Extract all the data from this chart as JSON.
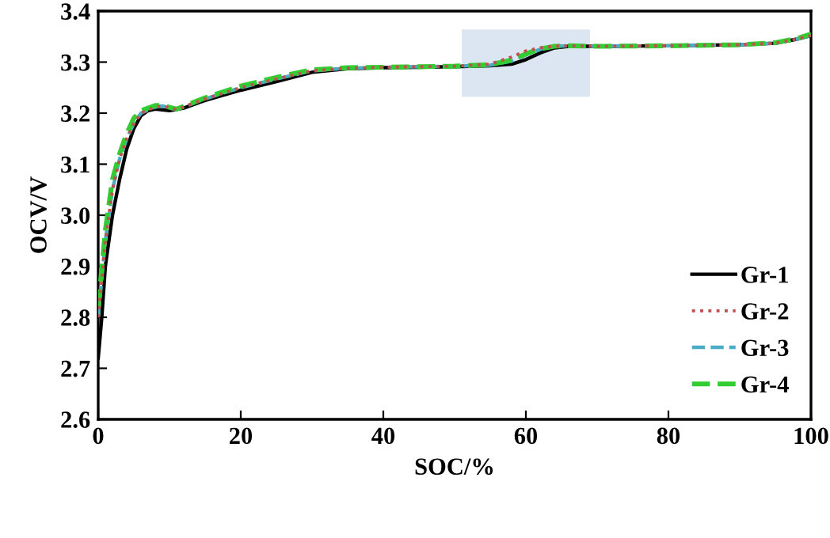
{
  "chart_data": {
    "type": "line",
    "xlabel": "SOC/%",
    "ylabel": "OCV/V",
    "xlim": [
      0,
      100
    ],
    "ylim": [
      2.6,
      3.4
    ],
    "xticks": [
      0,
      20,
      40,
      60,
      80,
      100
    ],
    "yticks": [
      {
        "value": 2.6,
        "label": "2.6"
      },
      {
        "value": 2.7,
        "label": "2.7"
      },
      {
        "value": 2.8,
        "label": "2.8"
      },
      {
        "value": 2.9,
        "label": "2.9"
      },
      {
        "value": 3.0,
        "label": "3.0"
      },
      {
        "value": 3.1,
        "label": "3.1"
      },
      {
        "value": 3.2,
        "label": "3.2"
      },
      {
        "value": 3.3,
        "label": "3.3"
      },
      {
        "value": 3.4,
        "label": "3.4"
      }
    ],
    "grid": false,
    "legend": "bottom right",
    "marker": "none",
    "bands": [
      {
        "axis": "x",
        "from": 51,
        "to": 69,
        "color": "#dce6f2"
      }
    ],
    "series": [
      {
        "name": "Gr-1",
        "color": "#000000",
        "line_style": "solid",
        "x": [
          0,
          0.5,
          1,
          2,
          3,
          4,
          5,
          6,
          7,
          8,
          10,
          12,
          15,
          20,
          25,
          30,
          35,
          40,
          50,
          55,
          58,
          60,
          62,
          64,
          66,
          70,
          80,
          90,
          95,
          98,
          100
        ],
        "values": [
          2.72,
          2.8,
          2.9,
          3.0,
          3.07,
          3.13,
          3.17,
          3.195,
          3.205,
          3.208,
          3.205,
          3.21,
          3.225,
          3.245,
          3.262,
          3.28,
          3.287,
          3.289,
          3.291,
          3.293,
          3.296,
          3.305,
          3.318,
          3.328,
          3.331,
          3.331,
          3.332,
          3.334,
          3.337,
          3.345,
          3.352
        ]
      },
      {
        "name": "Gr-2",
        "color": "#c0504d",
        "line_style": "dotted",
        "x": [
          0,
          1,
          2,
          3,
          4,
          5,
          6,
          8,
          9,
          11,
          15,
          20,
          25,
          30,
          35,
          40,
          50,
          55,
          58,
          60,
          62,
          64,
          66,
          70,
          80,
          90,
          95,
          98,
          100
        ],
        "values": [
          2.8,
          2.95,
          3.05,
          3.11,
          3.15,
          3.18,
          3.2,
          3.212,
          3.214,
          3.207,
          3.228,
          3.25,
          3.267,
          3.283,
          3.288,
          3.29,
          3.292,
          3.296,
          3.31,
          3.322,
          3.328,
          3.331,
          3.332,
          3.331,
          3.332,
          3.334,
          3.337,
          3.345,
          3.352
        ]
      },
      {
        "name": "Gr-3",
        "color": "#4bacc6",
        "line_style": "dashed",
        "x": [
          0,
          1,
          2,
          3,
          4,
          5,
          6,
          8,
          9,
          11,
          15,
          20,
          25,
          30,
          35,
          40,
          50,
          55,
          58,
          60,
          62,
          64,
          66,
          70,
          80,
          90,
          95,
          98,
          100
        ],
        "values": [
          2.8,
          2.95,
          3.05,
          3.11,
          3.15,
          3.18,
          3.2,
          3.212,
          3.214,
          3.207,
          3.228,
          3.25,
          3.267,
          3.283,
          3.288,
          3.29,
          3.292,
          3.294,
          3.302,
          3.314,
          3.325,
          3.331,
          3.332,
          3.331,
          3.332,
          3.334,
          3.337,
          3.345,
          3.352
        ]
      },
      {
        "name": "Gr-4",
        "color": "#33cc33",
        "line_style": "dashed",
        "x": [
          0,
          1,
          2,
          3,
          4,
          5,
          6,
          8,
          9,
          11,
          15,
          20,
          25,
          30,
          35,
          40,
          50,
          55,
          58,
          60,
          62,
          64,
          66,
          70,
          80,
          90,
          95,
          98,
          100
        ],
        "values": [
          2.82,
          2.97,
          3.07,
          3.12,
          3.16,
          3.19,
          3.205,
          3.215,
          3.215,
          3.208,
          3.23,
          3.253,
          3.27,
          3.285,
          3.289,
          3.29,
          3.292,
          3.295,
          3.304,
          3.316,
          3.326,
          3.331,
          3.332,
          3.331,
          3.332,
          3.334,
          3.338,
          3.346,
          3.355
        ]
      }
    ]
  }
}
